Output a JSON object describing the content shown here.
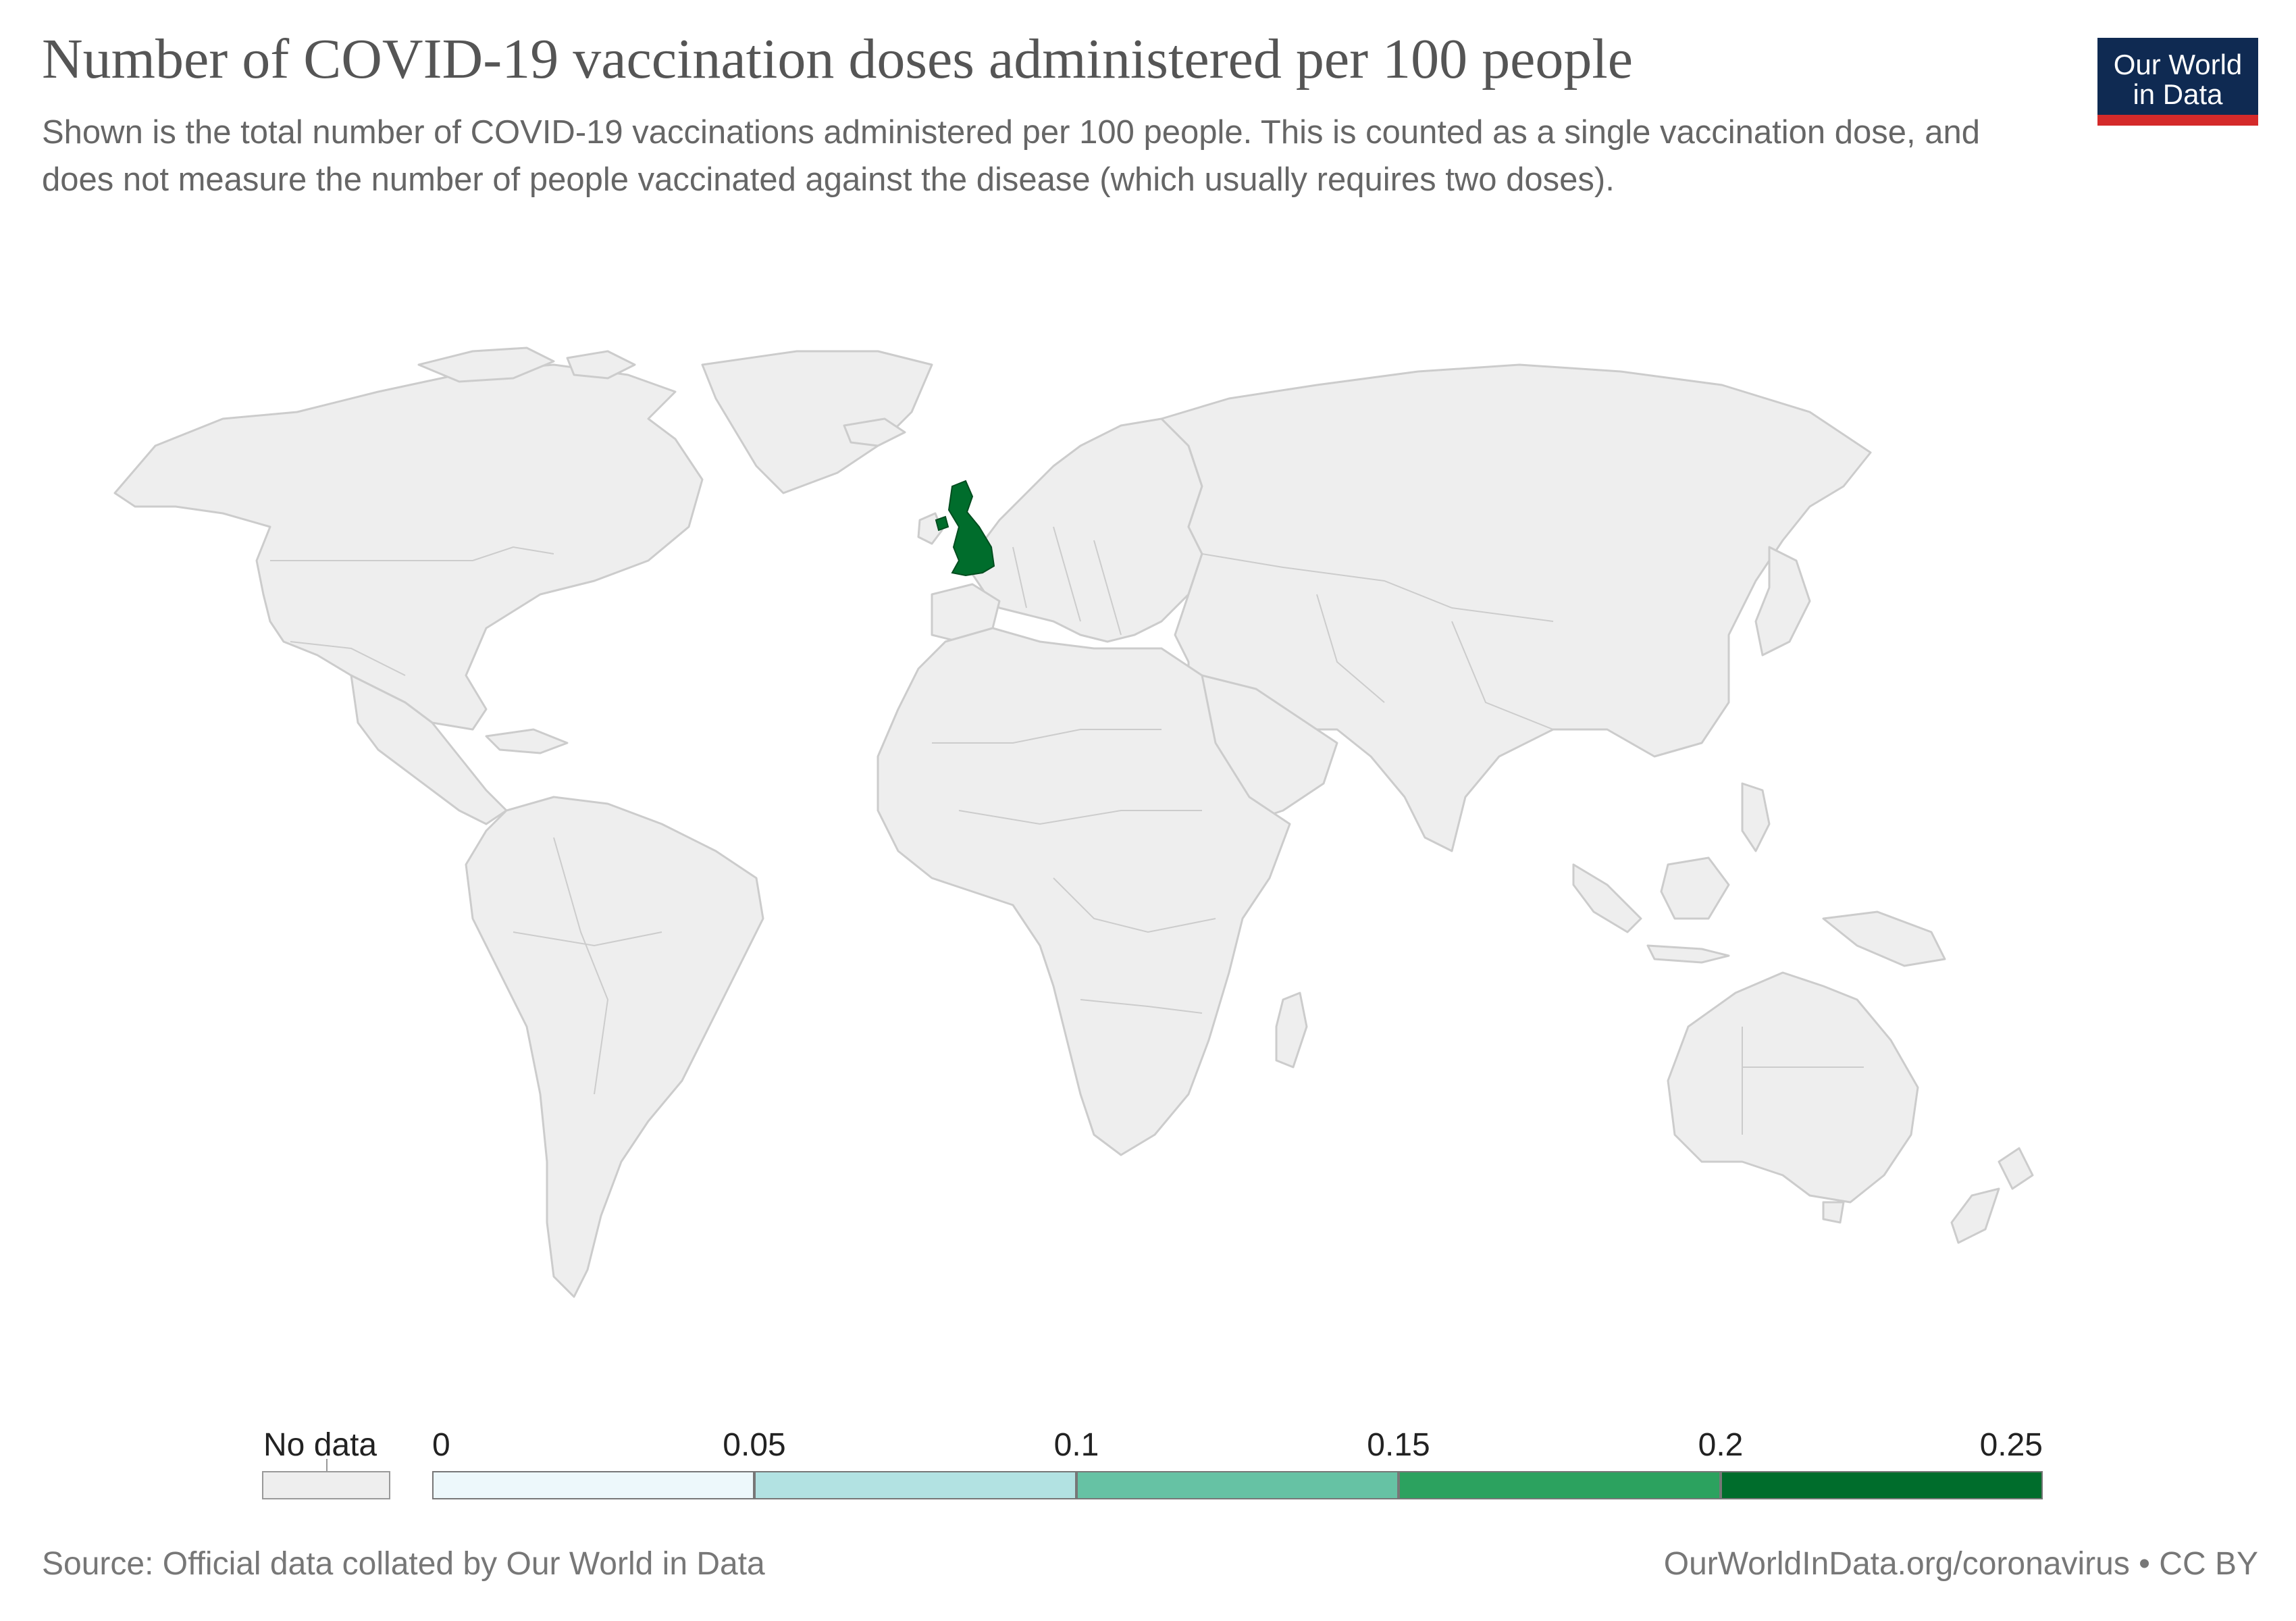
{
  "header": {
    "title": "Number of COVID-19 vaccination doses administered per 100 people",
    "subtitle": "Shown is the total number of COVID-19 vaccinations administered per 100 people. This is counted as a single vaccination dose, and does not measure the number of people vaccinated against the disease (which usually requires two doses)."
  },
  "logo": {
    "line1": "Our World",
    "line2": "in Data",
    "bg_color": "#0f2a52",
    "accent_color": "#d42a2a"
  },
  "map": {
    "land_color": "#eeeeee",
    "border_color": "#cccccc",
    "highlight_region": "United Kingdom",
    "highlight_color": "#006d2c"
  },
  "legend": {
    "no_data_label": "No data",
    "ticks": [
      "0",
      "0.05",
      "0.1",
      "0.15",
      "0.2",
      "0.25"
    ],
    "bins": [
      {
        "from": 0,
        "to": 0.05,
        "color": "#edf8fb"
      },
      {
        "from": 0.05,
        "to": 0.1,
        "color": "#b2e2e2"
      },
      {
        "from": 0.1,
        "to": 0.15,
        "color": "#66c2a4"
      },
      {
        "from": 0.15,
        "to": 0.2,
        "color": "#2ca25f"
      },
      {
        "from": 0.2,
        "to": 0.25,
        "color": "#006d2c"
      }
    ]
  },
  "footer": {
    "source": "Source: Official data collated by Our World in Data",
    "link": "OurWorldInData.org/coronavirus • CC BY"
  }
}
